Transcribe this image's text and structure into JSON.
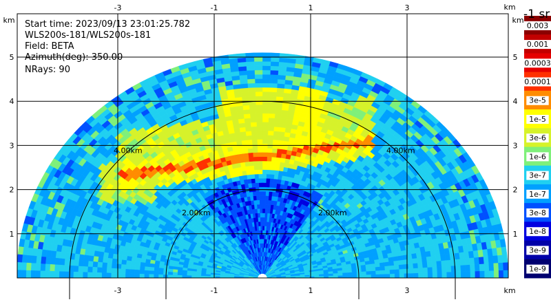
{
  "info": {
    "start_time": "Start time: 2023/09/13 23:01:25.782",
    "instrument": "WLS200s-181/WLS200s-181",
    "field": "Field: BETA",
    "azimuth": "Azimuth(deg): 350.00",
    "nrays": "NRays: 90"
  },
  "chart_data": {
    "type": "heatmap",
    "projection": "rhi-half-disc",
    "field": "BETA",
    "azimuth_deg": 350.0,
    "n_rays": 90,
    "x_unit": "km",
    "y_unit": "km",
    "xlim": [
      -4.0,
      5.0
    ],
    "ylim": [
      0.0,
      6.0
    ],
    "x_ticks": [
      -3,
      -1,
      1,
      3
    ],
    "x_tick_labels": [
      "-3",
      "-1",
      "1",
      "3"
    ],
    "y_ticks": [
      1,
      2,
      3,
      4,
      5
    ],
    "y_tick_labels": [
      "1",
      "2",
      "3",
      "4",
      "5"
    ],
    "max_range_km": 5.1,
    "range_rings": [
      {
        "r_km": 2.0,
        "label": "2.00km"
      },
      {
        "r_km": 4.0,
        "label": "4.00km"
      }
    ],
    "aerosol_layer": {
      "height_km": [
        2.3,
        3.1
      ],
      "x_km": [
        -3.0,
        2.3
      ],
      "peak_value": 0.0001
    },
    "colorbar": {
      "unit": "-1 sr",
      "labels": [
        "0.003",
        "0.001",
        "0.0003",
        "0.0001",
        "3e-5",
        "1e-5",
        "3e-6",
        "1e-6",
        "3e-7",
        "1e-7",
        "3e-8",
        "1e-8",
        "3e-9",
        "1e-9"
      ],
      "colors": [
        "#8b0000",
        "#c20000",
        "#e60000",
        "#ff3000",
        "#ff8c00",
        "#ffff00",
        "#d6f22a",
        "#7ff07a",
        "#20d0f0",
        "#00a0ff",
        "#0050ff",
        "#0000e0",
        "#0000a8",
        "#000070"
      ]
    }
  }
}
